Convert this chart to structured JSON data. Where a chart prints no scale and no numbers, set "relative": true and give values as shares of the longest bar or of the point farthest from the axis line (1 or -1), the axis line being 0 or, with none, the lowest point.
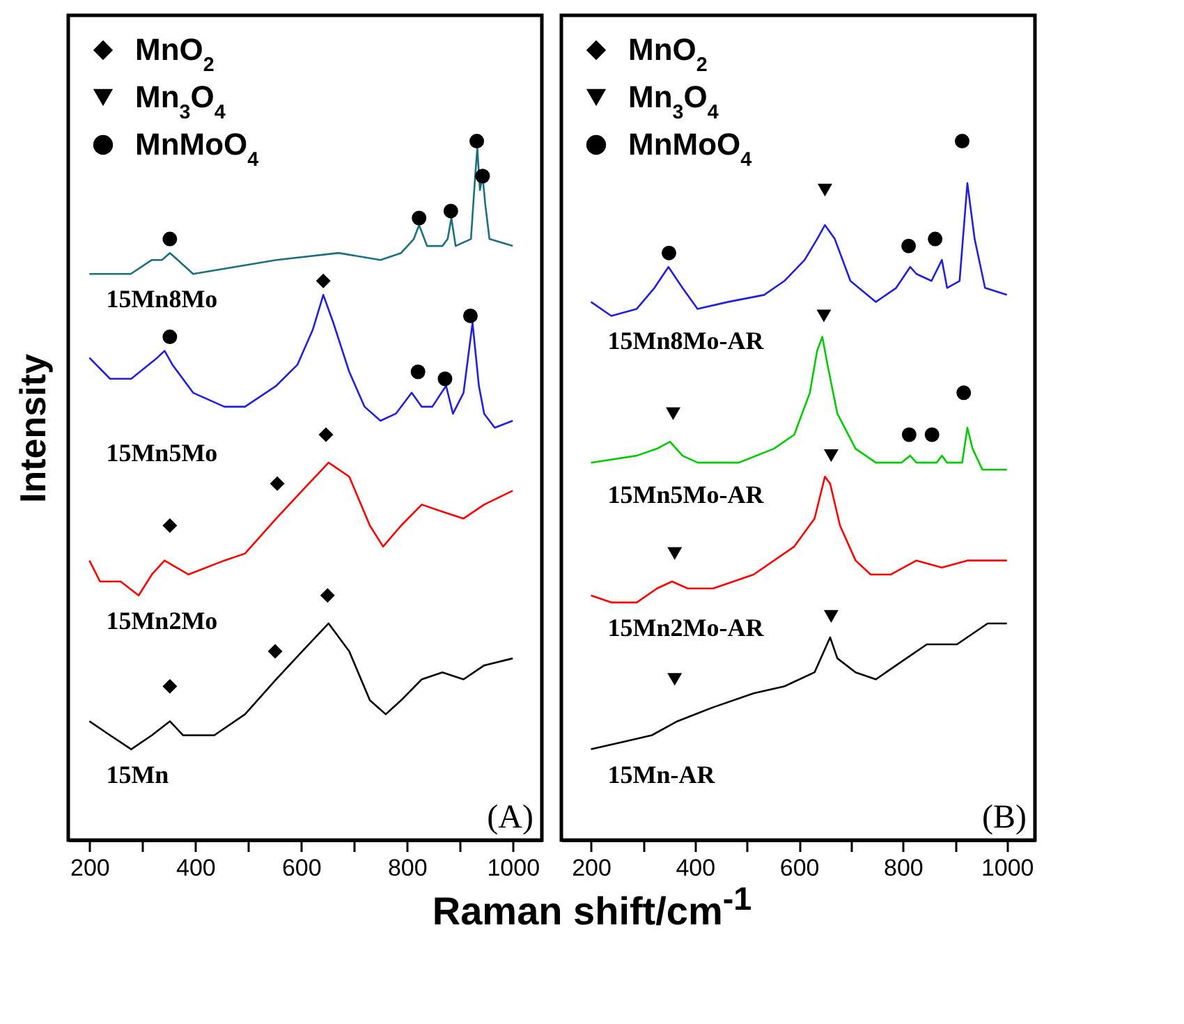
{
  "chart_data": [
    {
      "type": "line",
      "relative": true,
      "ylabel": "Intensity",
      "xlabel": "Raman shift/cm$^{-1}$",
      "annotations": [
        "(A)"
      ],
      "legend": "top left",
      "xlim": [
        160,
        1055
      ],
      "xticks": [
        200,
        {
          "value": 300,
          "label": null
        },
        400,
        {
          "value": 500,
          "label": null
        },
        600,
        {
          "value": 700,
          "label": null
        },
        800,
        {
          "value": 900,
          "label": null
        },
        1000
      ],
      "series": [
        {
          "name": "15Mn8Mo",
          "color": "#1b6f7f",
          "x": [
            200,
            278,
            318,
            337,
            352,
            367,
            396,
            553,
            671,
            750,
            789,
            813,
            823,
            838,
            867,
            877,
            884,
            892,
            921,
            929,
            933,
            938,
            943,
            948,
            956,
            1000
          ],
          "values": [
            0.81,
            0.81,
            0.83,
            0.83,
            0.84,
            0.83,
            0.81,
            0.83,
            0.84,
            0.83,
            0.84,
            0.86,
            0.88,
            0.85,
            0.85,
            0.86,
            0.89,
            0.85,
            0.86,
            0.95,
            0.99,
            0.93,
            0.95,
            0.91,
            0.86,
            0.85
          ]
        },
        {
          "name": "15Mn5Mo",
          "color": "#1f1fe0",
          "x": [
            200,
            239,
            279,
            328,
            342,
            357,
            396,
            455,
            494,
            553,
            593,
            622,
            642,
            661,
            691,
            720,
            750,
            779,
            809,
            828,
            848,
            874,
            887,
            907,
            924,
            936,
            946,
            966,
            1000
          ],
          "values": [
            0.69,
            0.66,
            0.66,
            0.69,
            0.7,
            0.68,
            0.64,
            0.62,
            0.62,
            0.65,
            0.68,
            0.73,
            0.78,
            0.74,
            0.67,
            0.62,
            0.6,
            0.61,
            0.64,
            0.62,
            0.62,
            0.65,
            0.61,
            0.64,
            0.74,
            0.65,
            0.61,
            0.59,
            0.6
          ]
        },
        {
          "name": "15Mn2Mo",
          "color": "#ff0000",
          "x": [
            200,
            220,
            259,
            293,
            318,
            342,
            387,
            455,
            494,
            553,
            602,
            652,
            691,
            730,
            755,
            789,
            828,
            867,
            907,
            946,
            1000
          ],
          "values": [
            0.4,
            0.37,
            0.37,
            0.35,
            0.38,
            0.4,
            0.38,
            0.4,
            0.41,
            0.46,
            0.5,
            0.54,
            0.52,
            0.45,
            0.42,
            0.45,
            0.48,
            0.47,
            0.46,
            0.48,
            0.5
          ]
        },
        {
          "name": "15Mn",
          "color": "#000000",
          "x": [
            200,
            239,
            279,
            318,
            352,
            377,
            436,
            494,
            553,
            602,
            652,
            691,
            730,
            760,
            789,
            828,
            867,
            907,
            946,
            1000
          ],
          "values": [
            0.17,
            0.15,
            0.13,
            0.15,
            0.17,
            0.15,
            0.15,
            0.18,
            0.23,
            0.27,
            0.31,
            0.27,
            0.2,
            0.18,
            0.2,
            0.23,
            0.24,
            0.23,
            0.25,
            0.26
          ]
        },
        {
          "name": "MnO$_{2}$",
          "type": "scatter",
          "marker": "diamond",
          "color": "#000000",
          "x": [
            642,
            647,
            555,
            352,
            650,
            551,
            352
          ],
          "values": [
            0.8,
            0.58,
            0.51,
            0.45,
            0.35,
            0.27,
            0.22
          ]
        },
        {
          "name": "Mn$_{3}$O$_{4}$",
          "type": "scatter",
          "marker": "triangle",
          "color": "#000000"
        },
        {
          "name": "MnMoO$_{4}$",
          "type": "scatter",
          "marker": "circle",
          "color": "#000000",
          "x": [
            352,
            823,
            883,
            932,
            943,
            352,
            821,
            872,
            920
          ],
          "values": [
            0.86,
            0.89,
            0.9,
            1.0,
            0.95,
            0.72,
            0.67,
            0.66,
            0.75
          ]
        }
      ]
    },
    {
      "type": "line",
      "relative": true,
      "annotations": [
        "(B)"
      ],
      "legend": "top left",
      "xlim": [
        143,
        1054
      ],
      "xticks": [
        200,
        {
          "value": 300,
          "label": null
        },
        400,
        {
          "value": 500,
          "label": null
        },
        600,
        {
          "value": 700,
          "label": null
        },
        800,
        {
          "value": 900,
          "label": null
        },
        1000
      ],
      "series": [
        {
          "name": "15Mn8Mo-AR",
          "color": "#1f1fe0",
          "x": [
            200,
            239,
            288,
            322,
            349,
            376,
            405,
            464,
            533,
            572,
            611,
            635,
            650,
            669,
            699,
            748,
            787,
            814,
            826,
            855,
            875,
            885,
            909,
            924,
            938,
            958,
            1000
          ],
          "values": [
            0.77,
            0.75,
            0.76,
            0.79,
            0.82,
            0.79,
            0.76,
            0.77,
            0.78,
            0.8,
            0.83,
            0.86,
            0.88,
            0.86,
            0.8,
            0.77,
            0.79,
            0.82,
            0.81,
            0.8,
            0.83,
            0.79,
            0.8,
            0.94,
            0.86,
            0.79,
            0.78
          ]
        },
        {
          "name": "15Mn5Mo-AR",
          "color": "#00cc00",
          "x": [
            200,
            288,
            327,
            352,
            376,
            405,
            484,
            552,
            591,
            621,
            635,
            645,
            655,
            674,
            709,
            748,
            797,
            814,
            826,
            865,
            875,
            885,
            914,
            924,
            934,
            953,
            1000
          ],
          "values": [
            0.54,
            0.55,
            0.56,
            0.57,
            0.55,
            0.54,
            0.54,
            0.56,
            0.58,
            0.64,
            0.7,
            0.72,
            0.68,
            0.61,
            0.56,
            0.54,
            0.54,
            0.55,
            0.54,
            0.54,
            0.55,
            0.54,
            0.54,
            0.59,
            0.56,
            0.53,
            0.53
          ]
        },
        {
          "name": "15Mn2Mo-AR",
          "color": "#ff0000",
          "x": [
            200,
            239,
            288,
            327,
            356,
            386,
            435,
            513,
            591,
            630,
            650,
            660,
            679,
            709,
            738,
            777,
            826,
            875,
            924,
            963,
            1000
          ],
          "values": [
            0.35,
            0.34,
            0.34,
            0.36,
            0.37,
            0.36,
            0.36,
            0.38,
            0.42,
            0.46,
            0.52,
            0.51,
            0.45,
            0.4,
            0.38,
            0.38,
            0.4,
            0.39,
            0.4,
            0.4,
            0.4
          ]
        },
        {
          "name": "15Mn-AR",
          "color": "#000000",
          "x": [
            200,
            259,
            317,
            366,
            435,
            513,
            572,
            630,
            660,
            674,
            709,
            748,
            787,
            846,
            904,
            963,
            1000
          ],
          "values": [
            0.13,
            0.14,
            0.15,
            0.17,
            0.19,
            0.21,
            0.22,
            0.24,
            0.29,
            0.26,
            0.24,
            0.23,
            0.25,
            0.28,
            0.28,
            0.31,
            0.31
          ]
        },
        {
          "name": "MnO$_{2}$",
          "type": "scatter",
          "marker": "diamond",
          "color": "#000000"
        },
        {
          "name": "Mn$_{3}$O$_{4}$",
          "type": "scatter",
          "marker": "triangle",
          "color": "#000000",
          "x": [
            650,
            648,
            358,
            662,
            361,
            662,
            361
          ],
          "values": [
            0.93,
            0.75,
            0.61,
            0.55,
            0.41,
            0.32,
            0.23
          ]
        },
        {
          "name": "MnMoO$_{4}$",
          "type": "scatter",
          "marker": "circle",
          "color": "#000000",
          "x": [
            914,
            350,
            811,
            862,
            917,
            812,
            856
          ],
          "values": [
            1.0,
            0.84,
            0.85,
            0.86,
            0.64,
            0.58,
            0.58
          ]
        }
      ]
    }
  ]
}
